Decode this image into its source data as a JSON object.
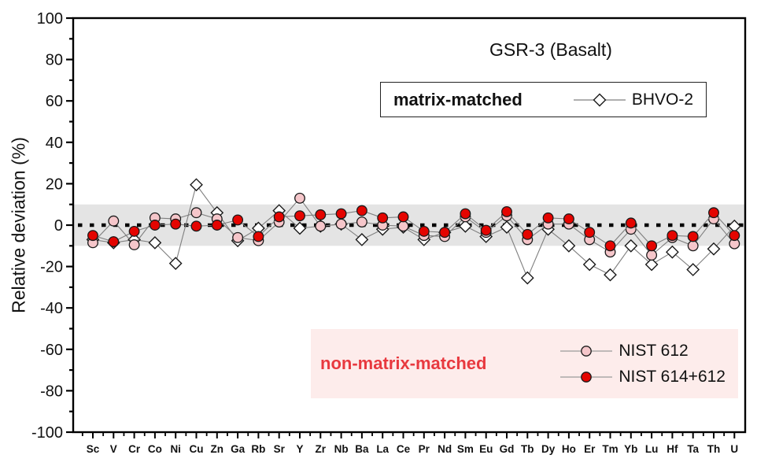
{
  "title": "GSR-3 (Basalt)",
  "ylabel": "Relative deviation (%)",
  "legend_matrix": {
    "label": "matrix-matched",
    "series": "BHVO-2"
  },
  "legend_nonmatrix": {
    "label": "non-matrix-matched",
    "series_1": "NIST 612",
    "series_2": "NIST 614+612"
  },
  "colors": {
    "band": "#e4e4e4",
    "axis": "#000000",
    "series_line": "#7f7f7f",
    "marker_stroke": "#1a1a1a",
    "red_fill": "#e40400",
    "pink_fill": "#f5c6ca",
    "diamond_fill": "#ffffff",
    "nonmatrix_bg": "#fdeceb",
    "nonmatrix_text": "#e8393f"
  },
  "chart_data": {
    "type": "line",
    "title": "GSR-3 (Basalt)",
    "ylabel": "Relative deviation (%)",
    "xlabel": "",
    "ylim": [
      -100,
      100
    ],
    "ytick_step": 20,
    "yminor_step": 10,
    "grid": false,
    "zero_line_dotted": true,
    "reference_band": [
      -10,
      10
    ],
    "legend_position": "matrix-matched box top-right; non-matrix-matched box bottom-right",
    "categories": [
      "Sc",
      "V",
      "Cr",
      "Co",
      "Ni",
      "Cu",
      "Zn",
      "Ga",
      "Rb",
      "Sr",
      "Y",
      "Zr",
      "Nb",
      "Ba",
      "La",
      "Ce",
      "Pr",
      "Nd",
      "Sm",
      "Eu",
      "Gd",
      "Tb",
      "Dy",
      "Ho",
      "Er",
      "Tm",
      "Yb",
      "Lu",
      "Hf",
      "Ta",
      "Th",
      "U"
    ],
    "series": [
      {
        "name": "BHVO-2",
        "group": "matrix-matched",
        "marker": "diamond",
        "values": [
          -7,
          -8.5,
          -7,
          -8.5,
          -18.5,
          19.5,
          6,
          -7.5,
          -1.5,
          7,
          -1.5,
          -0.5,
          0.5,
          -7,
          -2,
          -1,
          -7,
          -3.5,
          -0.5,
          -5.5,
          -1,
          -25.5,
          -2,
          -10,
          -19,
          -24,
          -10,
          -19,
          -13,
          -21.5,
          -11.5,
          -0.5
        ]
      },
      {
        "name": "NIST 612",
        "group": "non-matrix-matched",
        "marker": "circle",
        "values": [
          -8.5,
          2,
          -9.5,
          3.5,
          3,
          6,
          3,
          -6,
          -7.5,
          1.5,
          13,
          -0.5,
          0.5,
          1.5,
          0,
          -0.5,
          -5,
          -5.5,
          4,
          -3.5,
          4.5,
          -7,
          0.5,
          0.5,
          -7,
          -13,
          -2,
          -14.5,
          -6,
          -10,
          3,
          -9
        ]
      },
      {
        "name": "NIST 614+612",
        "group": "non-matrix-matched",
        "marker": "circle",
        "values": [
          -5,
          -8,
          -3,
          0,
          0.5,
          -0.5,
          0,
          2.5,
          -5.5,
          4,
          4.5,
          5,
          5.5,
          7,
          3.5,
          4,
          -3,
          -3.5,
          5.5,
          -2.5,
          6.5,
          -4.5,
          3.5,
          3,
          -3.5,
          -10,
          1,
          -10,
          -5,
          -5.5,
          6,
          -5
        ]
      }
    ]
  }
}
